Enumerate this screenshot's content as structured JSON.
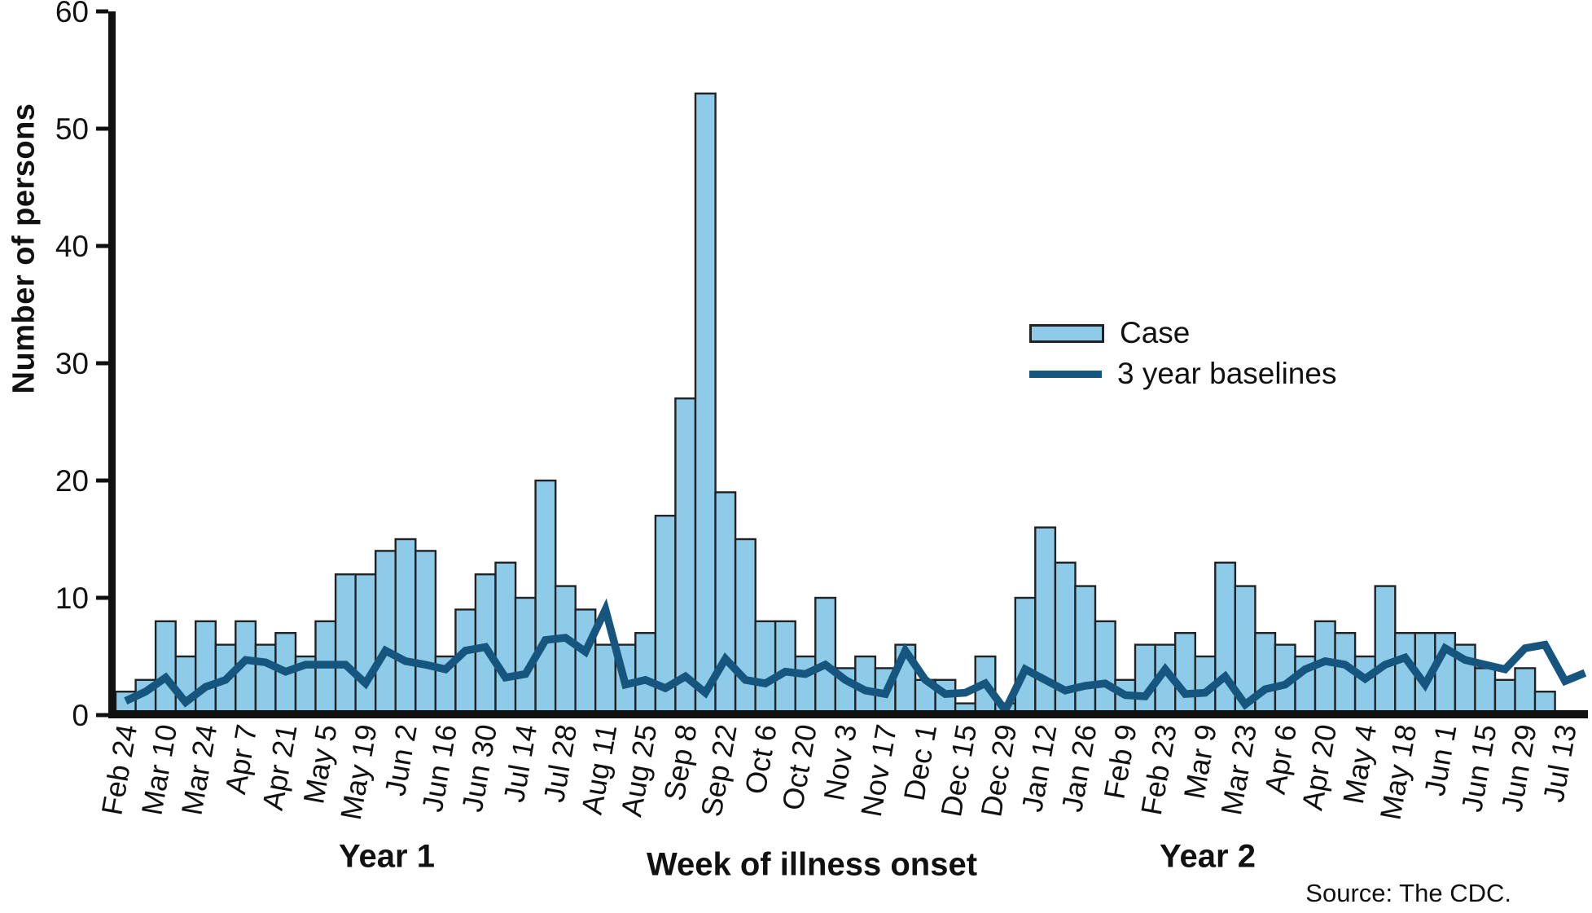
{
  "chart_data": {
    "type": "bar",
    "title": "",
    "xlabel": "Week of illness onset",
    "ylabel": "Number of persons",
    "ylim": [
      0,
      60
    ],
    "yticks": [
      0,
      10,
      20,
      30,
      40,
      50,
      60
    ],
    "grid": false,
    "legend_position": "center-right",
    "x_tick_labels": [
      "Feb 24",
      "Mar 10",
      "Mar 24",
      "Apr 7",
      "Apr 21",
      "May 5",
      "May 19",
      "Jun 2",
      "Jun 16",
      "Jun 30",
      "Jul 14",
      "Jul 28",
      "Aug 11",
      "Aug 25",
      "Sep 8",
      "Sep 22",
      "Oct 6",
      "Oct 20",
      "Nov 3",
      "Nov 17",
      "Dec 1",
      "Dec 15",
      "Dec 29",
      "Jan 12",
      "Jan 26",
      "Feb 9",
      "Feb 23",
      "Mar 9",
      "Mar 23",
      "Apr 6",
      "Apr 20",
      "May 4",
      "May 18",
      "Jun 1",
      "Jun 15",
      "Jun 29",
      "Jul 13"
    ],
    "x_tick_every": 2,
    "weeks": 74,
    "series": [
      {
        "name": "Case",
        "type": "bar",
        "color": "#8DCBE8",
        "stroke": "#222222",
        "values": [
          2,
          3,
          8,
          5,
          8,
          6,
          8,
          6,
          7,
          5,
          8,
          12,
          12,
          14,
          15,
          14,
          5,
          9,
          12,
          13,
          10,
          20,
          11,
          9,
          6,
          6,
          7,
          17,
          27,
          53,
          19,
          15,
          8,
          8,
          5,
          10,
          4,
          5,
          4,
          6,
          3,
          3,
          1,
          5,
          1,
          10,
          16,
          13,
          11,
          8,
          3,
          6,
          6,
          7,
          5,
          13,
          11,
          7,
          6,
          5,
          8,
          7,
          5,
          11,
          7,
          7,
          7,
          6,
          4,
          3,
          4,
          2,
          0,
          0
        ]
      },
      {
        "name": "3 year baselines",
        "type": "line",
        "color": "#16567E",
        "values": [
          1.2,
          2.0,
          3.2,
          1.1,
          2.4,
          3.0,
          4.7,
          4.5,
          3.7,
          4.3,
          4.3,
          4.3,
          2.7,
          5.5,
          4.6,
          4.3,
          3.9,
          5.5,
          5.8,
          3.2,
          3.5,
          6.4,
          6.6,
          5.4,
          9.0,
          2.6,
          3.0,
          2.3,
          3.3,
          1.9,
          4.8,
          3.0,
          2.7,
          3.7,
          3.5,
          4.3,
          3.0,
          2.1,
          1.8,
          5.5,
          3.0,
          1.8,
          1.9,
          2.7,
          0.4,
          3.9,
          3.0,
          2.1,
          2.5,
          2.7,
          1.7,
          1.6,
          3.9,
          1.8,
          1.9,
          3.3,
          0.9,
          2.2,
          2.6,
          3.9,
          4.6,
          4.3,
          3.1,
          4.3,
          4.9,
          2.6,
          5.7,
          4.7,
          4.3,
          3.9,
          5.7,
          6.0,
          2.9,
          3.6
        ]
      }
    ],
    "year1_label": "Year 1",
    "year2_label": "Year 2",
    "source": "Source: The CDC.",
    "axis_color": "#111111"
  },
  "legend": {
    "case_label": "Case",
    "baseline_label": "3 year baselines"
  }
}
